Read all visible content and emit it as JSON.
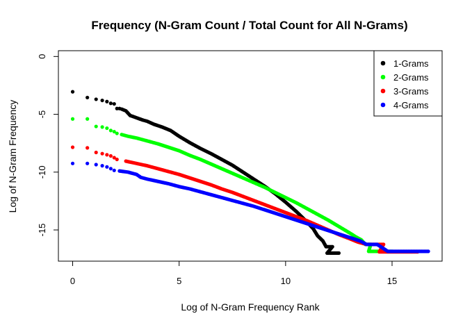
{
  "chart_data": {
    "type": "scatter",
    "title": "Frequency (N-Gram Count / Total Count for All N-Grams)",
    "xlabel": "Log of N-Gram Frequency Rank",
    "ylabel": "Log of N-Gram Frequency",
    "xlim": [
      -0.67,
      17.35
    ],
    "ylim": [
      -17.7,
      0.5
    ],
    "x_ticks": [
      0,
      5,
      10,
      15
    ],
    "x_tick_labels": [
      "0",
      "5",
      "10",
      "15"
    ],
    "y_ticks": [
      0,
      -5,
      -10,
      -15
    ],
    "y_tick_labels": [
      "0",
      "-5",
      "-10",
      "-15"
    ],
    "grid": false,
    "legend_position": "top-right",
    "series": [
      {
        "name": "1-Grams",
        "color": "#000000",
        "points": [
          [
            0.0,
            -3.05
          ],
          [
            0.69,
            -3.55
          ],
          [
            1.1,
            -3.7
          ],
          [
            1.39,
            -3.8
          ],
          [
            1.61,
            -3.9
          ],
          [
            1.79,
            -4.05
          ],
          [
            1.95,
            -4.1
          ],
          [
            2.08,
            -4.5
          ],
          [
            2.2,
            -4.5
          ],
          [
            2.3,
            -4.55
          ],
          [
            2.5,
            -4.7
          ],
          [
            2.7,
            -5.1
          ],
          [
            3.0,
            -5.3
          ],
          [
            3.3,
            -5.5
          ],
          [
            3.5,
            -5.6
          ],
          [
            3.8,
            -5.85
          ],
          [
            4.2,
            -6.1
          ],
          [
            4.6,
            -6.4
          ],
          [
            5.0,
            -6.9
          ],
          [
            5.5,
            -7.45
          ],
          [
            6.0,
            -7.95
          ],
          [
            6.5,
            -8.4
          ],
          [
            7.0,
            -8.9
          ],
          [
            7.5,
            -9.4
          ],
          [
            8.0,
            -10.0
          ],
          [
            8.5,
            -10.6
          ],
          [
            9.0,
            -11.2
          ],
          [
            9.5,
            -11.85
          ],
          [
            10.0,
            -12.6
          ],
          [
            10.5,
            -13.4
          ],
          [
            11.0,
            -14.3
          ],
          [
            11.3,
            -14.9
          ],
          [
            11.5,
            -15.5
          ],
          [
            11.75,
            -15.95
          ],
          [
            11.9,
            -16.45
          ],
          [
            12.2,
            -16.45
          ],
          [
            11.95,
            -17.0
          ],
          [
            12.1,
            -17.0
          ],
          [
            12.3,
            -17.0
          ],
          [
            12.5,
            -17.0
          ]
        ]
      },
      {
        "name": "2-Grams",
        "color": "#00ff00",
        "points": [
          [
            0.0,
            -5.4
          ],
          [
            0.69,
            -5.4
          ],
          [
            1.1,
            -6.05
          ],
          [
            1.39,
            -6.1
          ],
          [
            1.61,
            -6.2
          ],
          [
            1.79,
            -6.4
          ],
          [
            1.95,
            -6.5
          ],
          [
            2.08,
            -6.65
          ],
          [
            2.3,
            -6.75
          ],
          [
            2.6,
            -6.9
          ],
          [
            3.0,
            -7.05
          ],
          [
            3.5,
            -7.3
          ],
          [
            4.0,
            -7.55
          ],
          [
            4.5,
            -7.85
          ],
          [
            5.0,
            -8.15
          ],
          [
            5.5,
            -8.55
          ],
          [
            6.0,
            -8.9
          ],
          [
            6.5,
            -9.3
          ],
          [
            7.0,
            -9.7
          ],
          [
            7.5,
            -10.1
          ],
          [
            8.0,
            -10.5
          ],
          [
            8.5,
            -10.9
          ],
          [
            9.0,
            -11.3
          ],
          [
            9.5,
            -11.75
          ],
          [
            10.0,
            -12.2
          ],
          [
            10.5,
            -12.65
          ],
          [
            11.0,
            -13.15
          ],
          [
            11.5,
            -13.65
          ],
          [
            12.0,
            -14.15
          ],
          [
            12.5,
            -14.7
          ],
          [
            13.0,
            -15.25
          ],
          [
            13.3,
            -15.6
          ],
          [
            13.55,
            -15.85
          ],
          [
            13.75,
            -16.25
          ],
          [
            14.0,
            -16.25
          ],
          [
            13.9,
            -16.85
          ],
          [
            14.2,
            -16.85
          ],
          [
            14.5,
            -16.85
          ],
          [
            14.8,
            -16.85
          ],
          [
            15.0,
            -16.85
          ]
        ]
      },
      {
        "name": "3-Grams",
        "color": "#ff0000",
        "points": [
          [
            0.0,
            -7.85
          ],
          [
            0.69,
            -7.9
          ],
          [
            1.1,
            -8.3
          ],
          [
            1.39,
            -8.4
          ],
          [
            1.61,
            -8.5
          ],
          [
            1.79,
            -8.6
          ],
          [
            1.95,
            -8.75
          ],
          [
            2.08,
            -8.9
          ],
          [
            2.5,
            -9.05
          ],
          [
            3.0,
            -9.25
          ],
          [
            3.5,
            -9.45
          ],
          [
            4.0,
            -9.7
          ],
          [
            4.5,
            -9.95
          ],
          [
            5.0,
            -10.2
          ],
          [
            5.5,
            -10.5
          ],
          [
            6.0,
            -10.8
          ],
          [
            6.5,
            -11.1
          ],
          [
            7.0,
            -11.45
          ],
          [
            7.5,
            -11.75
          ],
          [
            8.0,
            -12.1
          ],
          [
            8.5,
            -12.45
          ],
          [
            9.0,
            -12.8
          ],
          [
            9.5,
            -13.15
          ],
          [
            10.0,
            -13.5
          ],
          [
            10.5,
            -13.85
          ],
          [
            11.0,
            -14.2
          ],
          [
            11.5,
            -14.6
          ],
          [
            12.0,
            -15.0
          ],
          [
            12.5,
            -15.4
          ],
          [
            13.0,
            -15.75
          ],
          [
            13.4,
            -16.05
          ],
          [
            13.8,
            -16.25
          ],
          [
            14.2,
            -16.25
          ],
          [
            14.6,
            -16.25
          ],
          [
            14.4,
            -16.9
          ],
          [
            14.8,
            -16.9
          ],
          [
            15.2,
            -16.9
          ],
          [
            15.6,
            -16.9
          ],
          [
            16.0,
            -16.9
          ],
          [
            16.2,
            -16.9
          ]
        ]
      },
      {
        "name": "4-Grams",
        "color": "#0000ff",
        "points": [
          [
            0.0,
            -9.25
          ],
          [
            0.69,
            -9.25
          ],
          [
            1.1,
            -9.35
          ],
          [
            1.39,
            -9.45
          ],
          [
            1.61,
            -9.55
          ],
          [
            1.79,
            -9.7
          ],
          [
            1.95,
            -9.85
          ],
          [
            2.2,
            -9.9
          ],
          [
            2.6,
            -10.0
          ],
          [
            3.0,
            -10.2
          ],
          [
            3.2,
            -10.45
          ],
          [
            3.5,
            -10.6
          ],
          [
            4.0,
            -10.8
          ],
          [
            4.5,
            -11.0
          ],
          [
            5.0,
            -11.25
          ],
          [
            5.5,
            -11.45
          ],
          [
            6.0,
            -11.7
          ],
          [
            6.5,
            -11.95
          ],
          [
            7.0,
            -12.2
          ],
          [
            7.5,
            -12.45
          ],
          [
            8.0,
            -12.7
          ],
          [
            8.5,
            -12.95
          ],
          [
            9.0,
            -13.25
          ],
          [
            9.5,
            -13.55
          ],
          [
            10.0,
            -13.85
          ],
          [
            10.5,
            -14.15
          ],
          [
            11.0,
            -14.45
          ],
          [
            11.5,
            -14.75
          ],
          [
            12.0,
            -15.05
          ],
          [
            12.5,
            -15.35
          ],
          [
            13.0,
            -15.65
          ],
          [
            13.5,
            -15.95
          ],
          [
            13.8,
            -16.25
          ],
          [
            14.3,
            -16.25
          ],
          [
            14.8,
            -16.85
          ],
          [
            15.2,
            -16.85
          ],
          [
            15.6,
            -16.85
          ],
          [
            16.0,
            -16.85
          ],
          [
            16.4,
            -16.85
          ],
          [
            16.7,
            -16.85
          ]
        ]
      }
    ]
  }
}
